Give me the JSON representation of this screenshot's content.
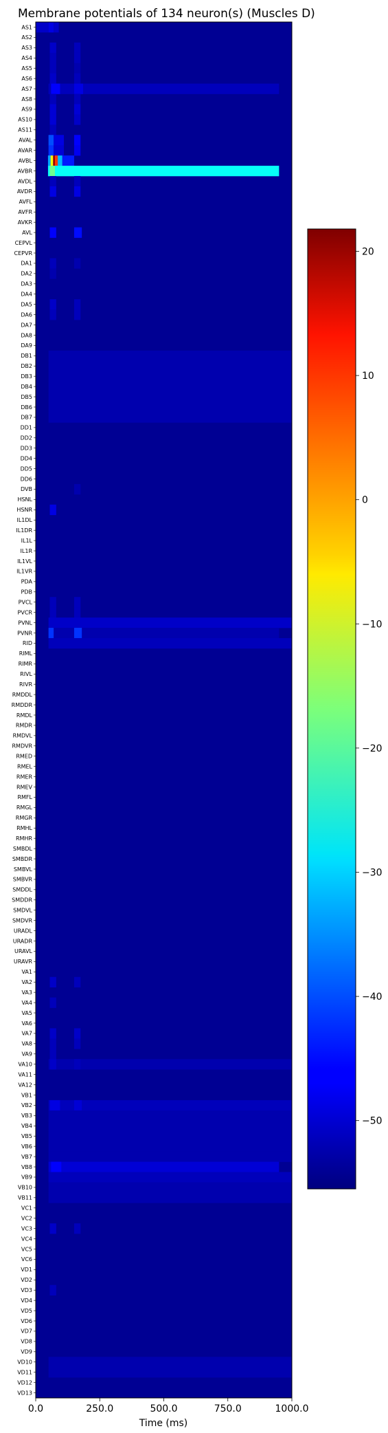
{
  "chart_data": {
    "type": "heatmap",
    "title": "Membrane potentials of 134 neuron(s) (Muscles D)",
    "xlabel": "Time (ms)",
    "ylabel": "",
    "xlim": [
      0,
      1000
    ],
    "x_ticks": [
      0,
      250,
      500,
      750,
      1000
    ],
    "x_tick_labels": [
      "0.0",
      "250.0",
      "500.0",
      "750.0",
      "1000.0"
    ],
    "colormap": "jet",
    "colorbar": {
      "vmin": -55.5,
      "vmax": 21.8,
      "ticks": [
        20,
        10,
        0,
        -10,
        -20,
        -30,
        -40,
        -50
      ],
      "tick_labels": [
        "20",
        "10",
        "0",
        "−10",
        "−20",
        "−30",
        "−40",
        "−50"
      ]
    },
    "baseline_mV": -54,
    "neurons": [
      "AS1",
      "AS2",
      "AS3",
      "AS4",
      "AS5",
      "AS6",
      "AS7",
      "AS8",
      "AS9",
      "AS10",
      "AS11",
      "AVAL",
      "AVAR",
      "AVBL",
      "AVBR",
      "AVDL",
      "AVDR",
      "AVFL",
      "AVFR",
      "AVKR",
      "AVL",
      "CEPVL",
      "CEPVR",
      "DA1",
      "DA2",
      "DA3",
      "DA4",
      "DA5",
      "DA6",
      "DA7",
      "DA8",
      "DA9",
      "DB1",
      "DB2",
      "DB3",
      "DB4",
      "DB5",
      "DB6",
      "DB7",
      "DD1",
      "DD2",
      "DD3",
      "DD4",
      "DD5",
      "DD6",
      "DVB",
      "HSNL",
      "HSNR",
      "IL1DL",
      "IL1DR",
      "IL1L",
      "IL1R",
      "IL1VL",
      "IL1VR",
      "PDA",
      "PDB",
      "PVCL",
      "PVCR",
      "PVNL",
      "PVNR",
      "RID",
      "RIML",
      "RIMR",
      "RIVL",
      "RIVR",
      "RMDDL",
      "RMDDR",
      "RMDL",
      "RMDR",
      "RMDVL",
      "RMDVR",
      "RMED",
      "RMEL",
      "RMER",
      "RMEV",
      "RMFL",
      "RMGL",
      "RMGR",
      "RMHL",
      "RMHR",
      "SMBDL",
      "SMBDR",
      "SMBVL",
      "SMBVR",
      "SMDDL",
      "SMDDR",
      "SMDVL",
      "SMDVR",
      "URADL",
      "URADR",
      "URAVL",
      "URAVR",
      "VA1",
      "VA2",
      "VA3",
      "VA4",
      "VA5",
      "VA6",
      "VA7",
      "VA8",
      "VA9",
      "VA10",
      "VA11",
      "VA12",
      "VB1",
      "VB2",
      "VB3",
      "VB4",
      "VB5",
      "VB6",
      "VB7",
      "VB8",
      "VB9",
      "VB10",
      "VB11",
      "VC1",
      "VC2",
      "VC3",
      "VC4",
      "VC5",
      "VC6",
      "VD1",
      "VD2",
      "VD3",
      "VD4",
      "VD5",
      "VD6",
      "VD7",
      "VD8",
      "VD9",
      "VD10",
      "VD11",
      "VD12",
      "VD13"
    ],
    "rows": {
      "AS1": [
        [
          0,
          50,
          -50
        ],
        [
          50,
          70,
          -48
        ],
        [
          70,
          90,
          -50
        ]
      ],
      "AS3": [
        [
          55,
          80,
          -50
        ],
        [
          150,
          175,
          -51
        ]
      ],
      "AS4": [
        [
          55,
          80,
          -51
        ],
        [
          150,
          175,
          -51
        ]
      ],
      "AS5": [
        [
          55,
          80,
          -51
        ],
        [
          150,
          175,
          -52
        ]
      ],
      "AS6": [
        [
          55,
          80,
          -50
        ],
        [
          150,
          175,
          -51
        ]
      ],
      "AS7": [
        [
          50,
          950,
          -51
        ],
        [
          60,
          95,
          -46
        ],
        [
          150,
          185,
          -48
        ]
      ],
      "AS8": [
        [
          55,
          80,
          -51
        ],
        [
          150,
          175,
          -51
        ]
      ],
      "AS9": [
        [
          55,
          80,
          -49
        ],
        [
          150,
          175,
          -49
        ]
      ],
      "AS10": [
        [
          55,
          80,
          -49
        ],
        [
          150,
          175,
          -50
        ]
      ],
      "AS11": [
        [
          55,
          80,
          -51
        ]
      ],
      "AVAL": [
        [
          50,
          70,
          -40
        ],
        [
          70,
          110,
          -48
        ],
        [
          150,
          175,
          -46
        ]
      ],
      "AVAR": [
        [
          50,
          70,
          -42
        ],
        [
          70,
          110,
          -49
        ],
        [
          150,
          175,
          -47
        ]
      ],
      "AVBL": [
        [
          48,
          58,
          -33
        ],
        [
          58,
          68,
          -8
        ],
        [
          68,
          75,
          20
        ],
        [
          75,
          86,
          8
        ],
        [
          86,
          104,
          -32
        ],
        [
          104,
          150,
          -44
        ]
      ],
      "AVBR": [
        [
          48,
          950,
          -26
        ],
        [
          55,
          75,
          -18
        ]
      ],
      "AVDL": [
        [
          55,
          80,
          -51
        ],
        [
          150,
          175,
          -51
        ]
      ],
      "AVDR": [
        [
          55,
          80,
          -48
        ],
        [
          150,
          175,
          -48
        ]
      ],
      "AVL": [
        [
          55,
          80,
          -46
        ],
        [
          150,
          180,
          -45
        ]
      ],
      "DA1": [
        [
          55,
          80,
          -51
        ],
        [
          150,
          175,
          -52
        ]
      ],
      "DA2": [
        [
          55,
          80,
          -52
        ]
      ],
      "DA5": [
        [
          55,
          80,
          -50
        ],
        [
          150,
          175,
          -51
        ]
      ],
      "DA6": [
        [
          55,
          80,
          -51
        ],
        [
          150,
          175,
          -51
        ]
      ],
      "DB1": [
        [
          50,
          1000,
          -52
        ]
      ],
      "DB2": [
        [
          50,
          1000,
          -52
        ]
      ],
      "DB3": [
        [
          50,
          1000,
          -52
        ]
      ],
      "DB4": [
        [
          50,
          1000,
          -52
        ]
      ],
      "DB5": [
        [
          50,
          1000,
          -52
        ]
      ],
      "DB6": [
        [
          50,
          1000,
          -52
        ]
      ],
      "DB7": [
        [
          50,
          1000,
          -52
        ]
      ],
      "DVB": [
        [
          150,
          175,
          -52
        ]
      ],
      "HSNR": [
        [
          55,
          80,
          -48
        ]
      ],
      "PVCL": [
        [
          55,
          80,
          -51
        ],
        [
          150,
          175,
          -51
        ]
      ],
      "PVCR": [
        [
          55,
          80,
          -51
        ],
        [
          150,
          175,
          -51
        ]
      ],
      "PVNL": [
        [
          50,
          1000,
          -50
        ]
      ],
      "PVNR": [
        [
          50,
          950,
          -52
        ],
        [
          50,
          70,
          -42
        ],
        [
          150,
          180,
          -42
        ]
      ],
      "RID": [
        [
          50,
          1000,
          -51
        ]
      ],
      "VA2": [
        [
          55,
          80,
          -50
        ],
        [
          150,
          175,
          -51
        ]
      ],
      "VA4": [
        [
          55,
          80,
          -51
        ]
      ],
      "VA7": [
        [
          55,
          80,
          -50
        ],
        [
          150,
          175,
          -50
        ]
      ],
      "VA8": [
        [
          55,
          80,
          -51
        ],
        [
          150,
          175,
          -51
        ]
      ],
      "VA9": [
        [
          55,
          80,
          -51
        ]
      ],
      "VA10": [
        [
          50,
          1000,
          -52
        ],
        [
          55,
          80,
          -50
        ],
        [
          150,
          175,
          -51
        ]
      ],
      "VB2": [
        [
          50,
          1000,
          -51
        ],
        [
          55,
          95,
          -48
        ],
        [
          150,
          180,
          -49
        ]
      ],
      "VB3": [
        [
          50,
          1000,
          -52
        ]
      ],
      "VB4": [
        [
          50,
          1000,
          -52
        ]
      ],
      "VB5": [
        [
          50,
          1000,
          -52
        ]
      ],
      "VB6": [
        [
          50,
          1000,
          -52
        ]
      ],
      "VB7": [
        [
          50,
          1000,
          -52
        ]
      ],
      "VB8": [
        [
          50,
          950,
          -49
        ],
        [
          60,
          100,
          -46
        ]
      ],
      "VB9": [
        [
          50,
          1000,
          -51
        ]
      ],
      "VB10": [
        [
          50,
          1000,
          -52
        ]
      ],
      "VB11": [
        [
          50,
          1000,
          -52
        ]
      ],
      "VC3": [
        [
          55,
          80,
          -50
        ],
        [
          150,
          175,
          -51
        ]
      ],
      "VD3": [
        [
          55,
          80,
          -51
        ]
      ],
      "VD10": [
        [
          50,
          1000,
          -52
        ]
      ],
      "VD11": [
        [
          50,
          1000,
          -52
        ]
      ]
    }
  }
}
